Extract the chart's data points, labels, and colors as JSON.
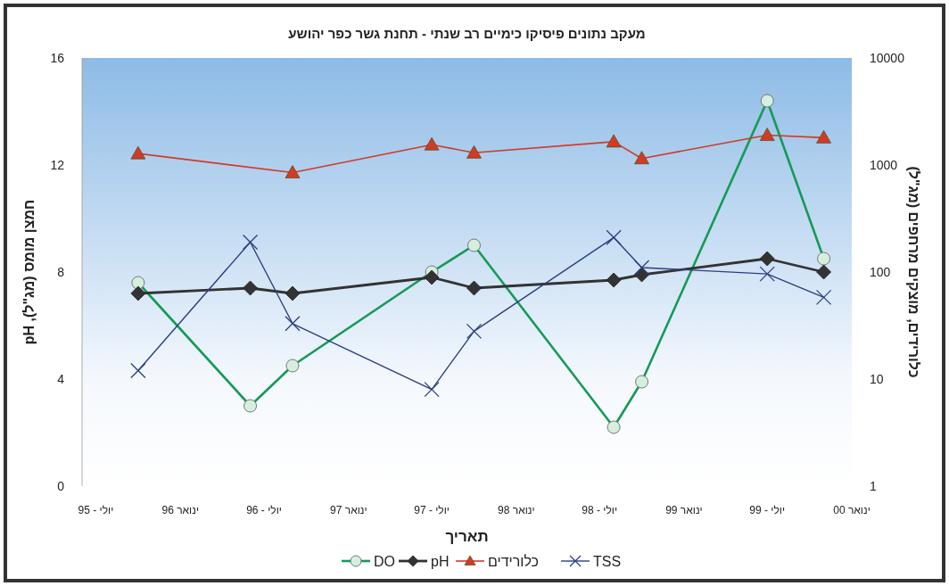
{
  "chart_data": {
    "type": "line",
    "title": "מעקב נתונים פיסיקו כימיים רב שנתי - תחנת גשר כפר יהושע",
    "xlabel": "תאריך",
    "ylabel": "חמצן מומס (מג\"ל), pH",
    "y2label": "כלורידים, מוצקים מרחפים (מג\"ל)",
    "x": [
      "1995-10",
      "1996-06",
      "1996-09",
      "1997-07",
      "1997-10",
      "1998-08",
      "1998-10",
      "1999-07",
      "1999-11"
    ],
    "xlim": [
      "1995-06",
      "2000-01"
    ],
    "xticks": [
      {
        "value": "1995-07",
        "label": "יולי - 95"
      },
      {
        "value": "1996-01",
        "label": "ינואר 96"
      },
      {
        "value": "1996-07",
        "label": "יולי - 96"
      },
      {
        "value": "1997-01",
        "label": "ינואר 97"
      },
      {
        "value": "1997-07",
        "label": "יולי - 97"
      },
      {
        "value": "1998-01",
        "label": "ינואר 98"
      },
      {
        "value": "1998-07",
        "label": "יולי - 98"
      },
      {
        "value": "1999-01",
        "label": "ינואר 99"
      },
      {
        "value": "1999-07",
        "label": "יולי - 99"
      },
      {
        "value": "2000-01",
        "label": "ינואר 00"
      }
    ],
    "ylim": [
      0,
      16
    ],
    "yticks": [
      0,
      4,
      8,
      12,
      16
    ],
    "y2lim": [
      1,
      10000
    ],
    "y2ticks": [
      1,
      10,
      100,
      1000,
      10000
    ],
    "log": "y2",
    "grid": false,
    "legend": "bottom",
    "series": [
      {
        "name": "DO",
        "color": "#159a55",
        "marker": "circle",
        "values": [
          7.6,
          3.0,
          4.5,
          8.0,
          9.0,
          2.2,
          3.9,
          14.4,
          8.5
        ]
      },
      {
        "name": "pH",
        "color": "#333333",
        "marker": "diamond",
        "values": [
          7.2,
          7.4,
          7.2,
          7.8,
          7.4,
          7.7,
          7.9,
          8.5,
          8.0
        ]
      },
      {
        "name": "כלורידים",
        "color": "#d23a26",
        "marker": "triangle",
        "axis": "y2",
        "x": [
          "1995-10",
          "1996-09",
          "1997-07",
          "1997-10",
          "1998-08",
          "1998-10",
          "1999-07",
          "1999-11"
        ],
        "values": [
          1280,
          850,
          1550,
          1300,
          1650,
          1150,
          1900,
          1800
        ]
      },
      {
        "name": "TSS",
        "color": "#2b3f7f",
        "marker": "cross",
        "axis": "y2",
        "values": [
          12,
          190,
          33,
          8,
          28,
          210,
          110,
          96,
          58
        ]
      }
    ]
  }
}
